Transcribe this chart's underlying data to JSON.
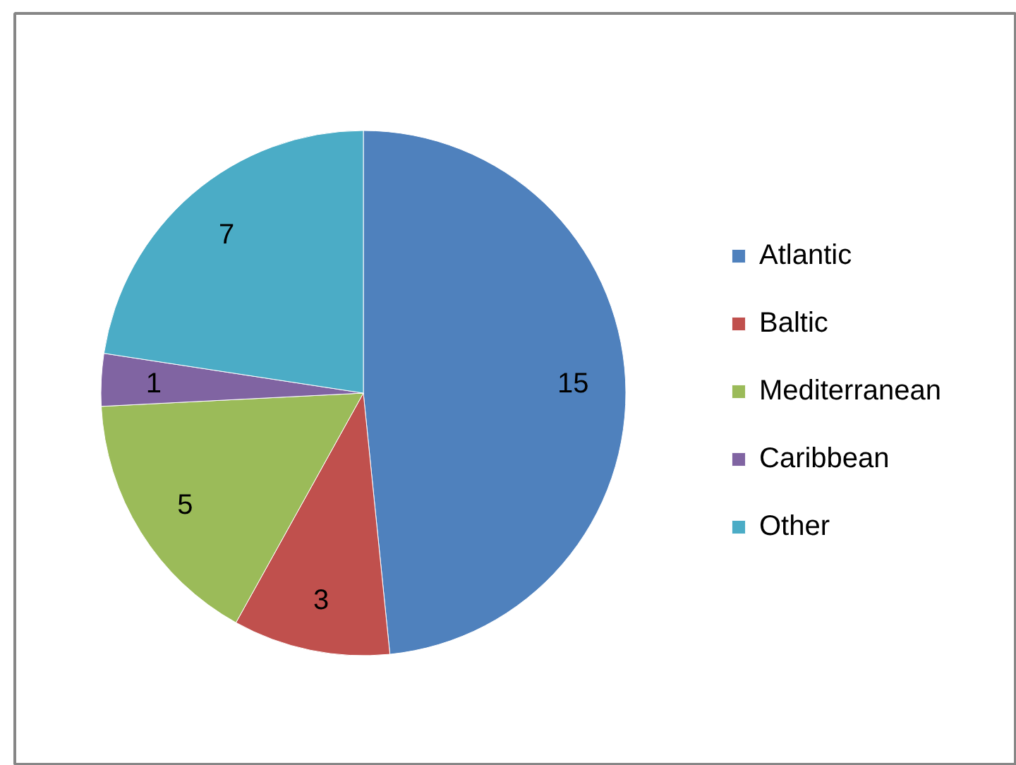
{
  "chart_data": {
    "type": "pie",
    "categories": [
      "Atlantic",
      "Baltic",
      "Mediterranean",
      "Caribbean",
      "Other"
    ],
    "values": [
      15,
      3,
      5,
      1,
      7
    ],
    "colors": [
      "#4f81bd",
      "#c0504d",
      "#9bbb59",
      "#8064a2",
      "#4bacc6"
    ],
    "data_labels": true,
    "legend": "right"
  }
}
